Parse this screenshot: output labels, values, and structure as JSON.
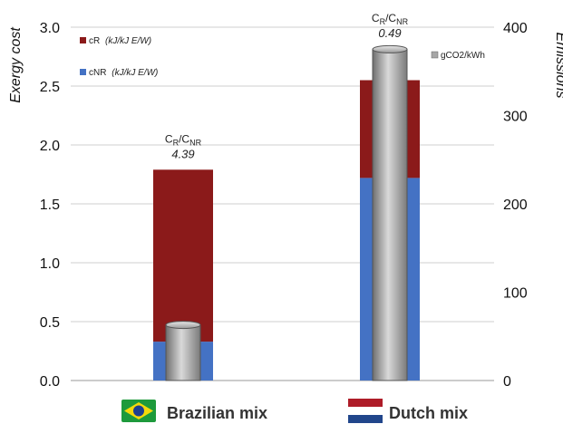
{
  "chart_data": {
    "type": "bar",
    "categories": [
      "Brazilian mix",
      "Dutch mix"
    ],
    "series": [
      {
        "name": "cNR",
        "unit": "(kJ/kJ E/W)",
        "values": [
          0.33,
          1.72
        ],
        "color": "#4472c4",
        "axis": "left",
        "stacked": true
      },
      {
        "name": "cR",
        "unit": "(kJ/kJ E/W)",
        "values": [
          1.46,
          0.83
        ],
        "color": "#8b1a1a",
        "axis": "left",
        "stacked": true
      },
      {
        "name": "gCO2/kWh",
        "values": [
          63,
          375
        ],
        "color": "#a6a6a6",
        "axis": "right",
        "stacked": false
      }
    ],
    "ratio_label": "CR/CNR",
    "ratios": [
      "4.39",
      "0.49"
    ],
    "ylabel": "Exergy cost",
    "ylabel_right": "Emissions",
    "ylim": [
      0,
      3.0
    ],
    "ylim_right": [
      0,
      400
    ],
    "yticks": [
      "0.0",
      "0.5",
      "1.0",
      "1.5",
      "2.0",
      "2.5",
      "3.0"
    ],
    "yticks_right": [
      "0",
      "100",
      "200",
      "300",
      "400"
    ],
    "grid": true,
    "legend_placement": "top-left and top-right",
    "category_flags": [
      "brazil-flag-icon",
      "netherlands-flag-icon"
    ]
  }
}
